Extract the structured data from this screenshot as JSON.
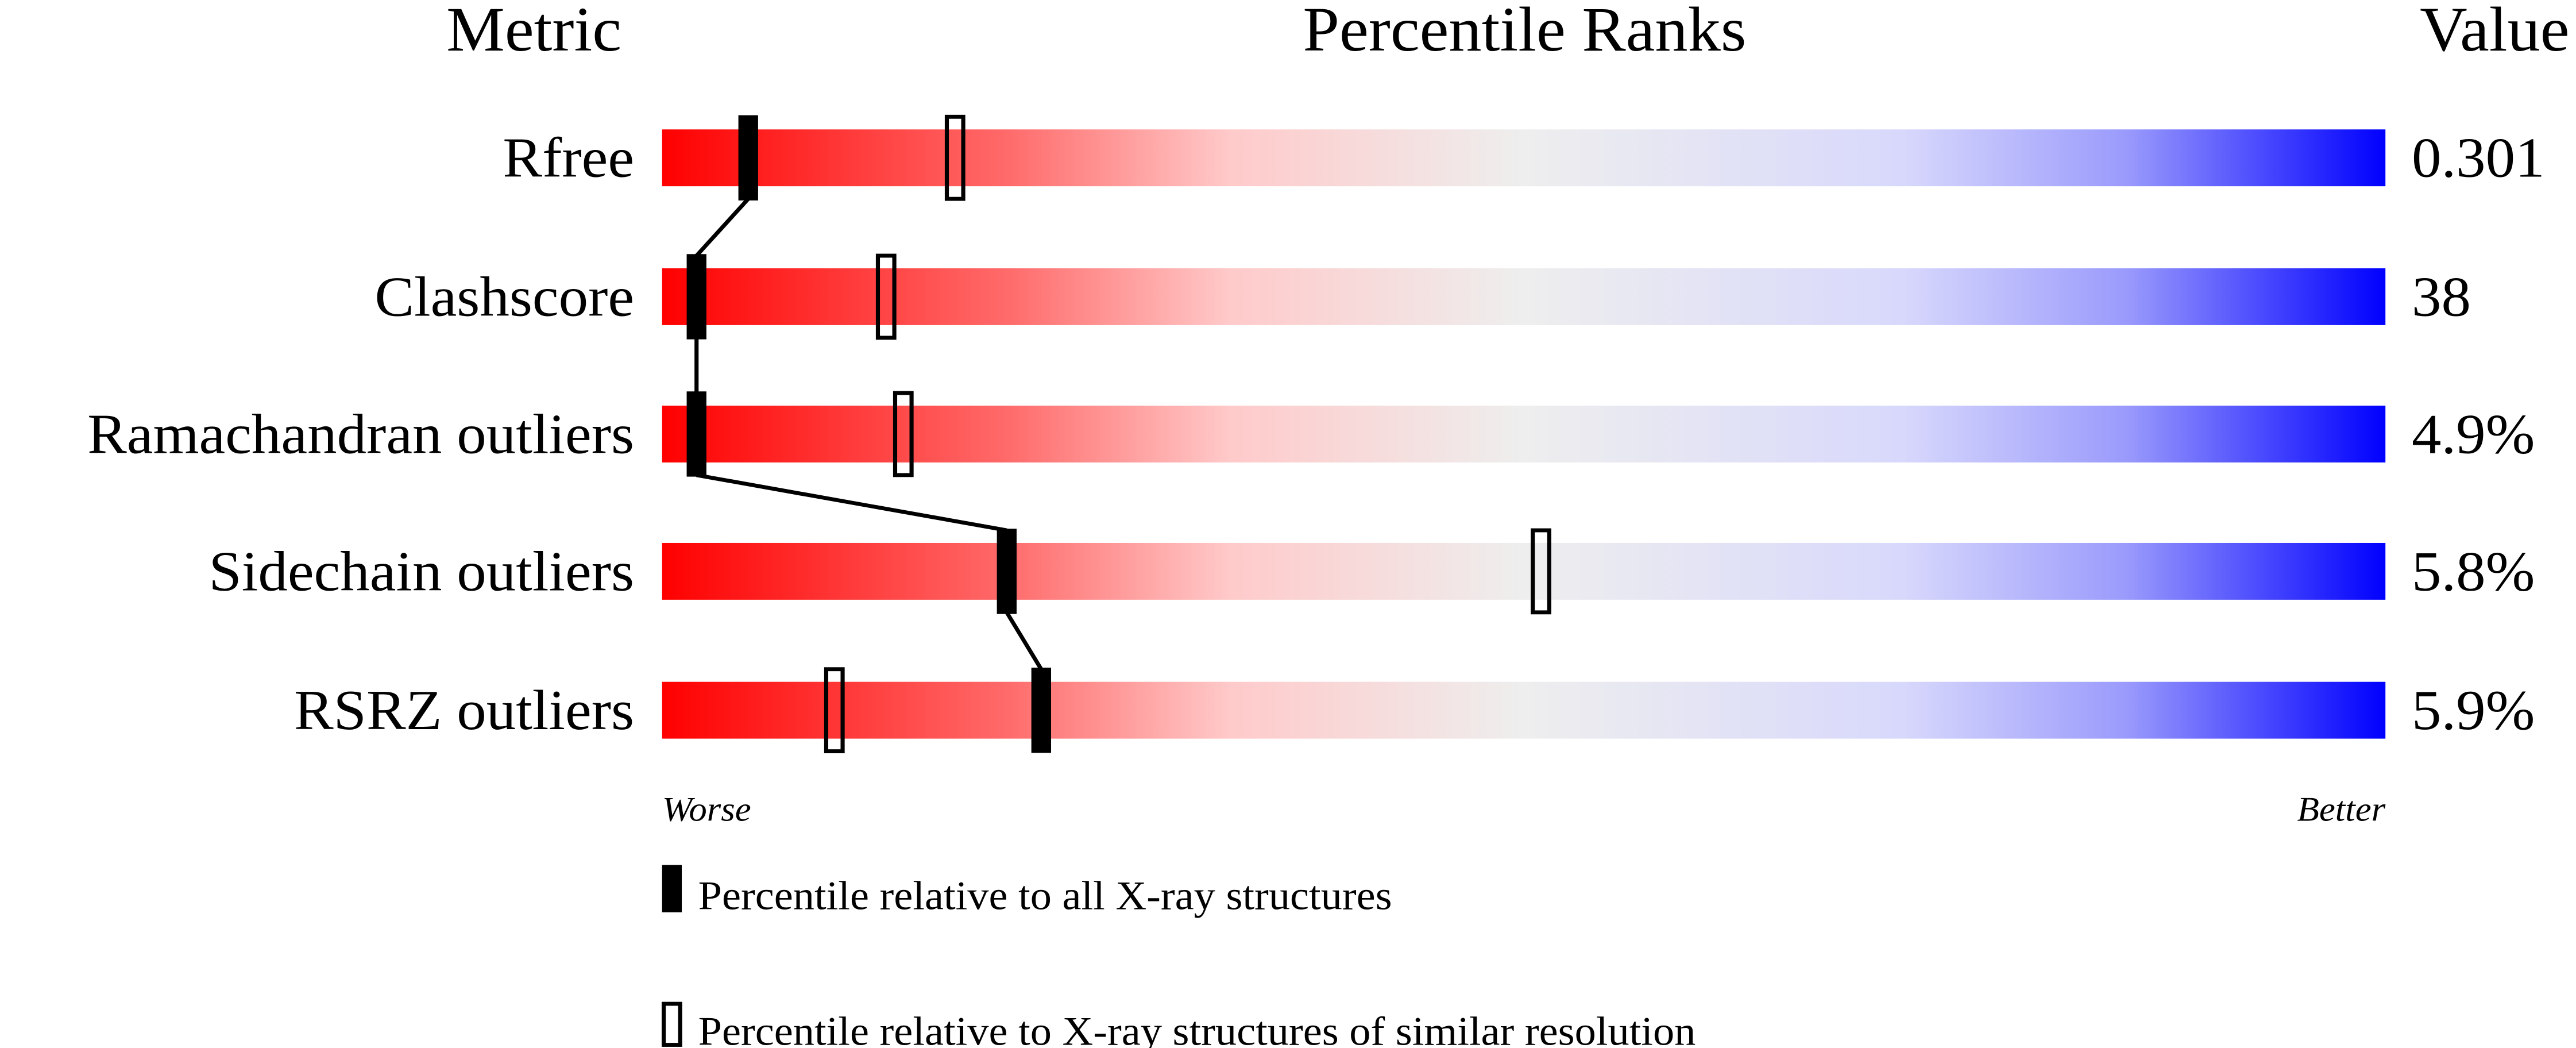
{
  "chart_data": {
    "type": "percentile-slider",
    "headers": {
      "metric": "Metric",
      "ranks": "Percentile Ranks",
      "value": "Value"
    },
    "xlim": [
      0,
      100
    ],
    "metrics": [
      {
        "name": "Rfree",
        "value": "0.301",
        "percentile_all": 5,
        "percentile_similar": 17
      },
      {
        "name": "Clashscore",
        "value": "38",
        "percentile_all": 2,
        "percentile_similar": 13
      },
      {
        "name": "Ramachandran outliers",
        "value": "4.9%",
        "percentile_all": 2,
        "percentile_similar": 14
      },
      {
        "name": "Sidechain outliers",
        "value": "5.8%",
        "percentile_all": 20,
        "percentile_similar": 51
      },
      {
        "name": "RSRZ outliers",
        "value": "5.9%",
        "percentile_all": 22,
        "percentile_similar": 10
      }
    ],
    "scale_labels": {
      "left": "Worse",
      "right": "Better"
    },
    "legend": {
      "all": "Percentile relative to all X-ray structures",
      "similar": "Percentile relative to X-ray structures of similar resolution"
    },
    "colors": {
      "worse": "#ff0000",
      "middle": "#eeeeee",
      "better": "#0000ff",
      "marker": "#000000"
    }
  }
}
